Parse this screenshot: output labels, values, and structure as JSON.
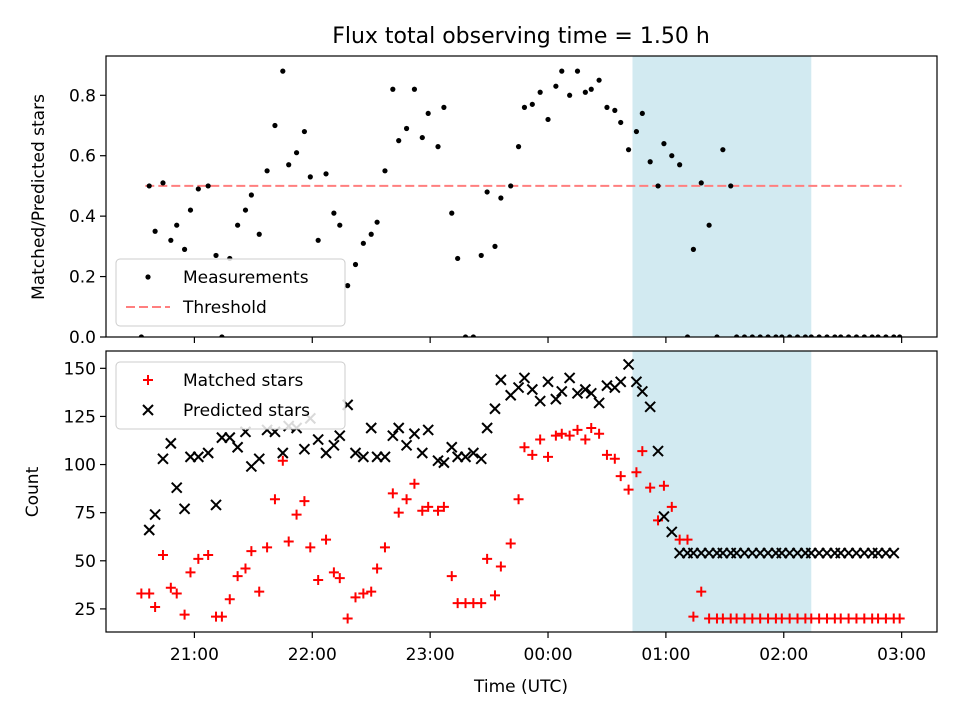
{
  "chart_data": {
    "type": "scatter",
    "title": "Flux total observing time = 1.50 h",
    "xlabel": "Time (UTC)",
    "x_tick_labels": [
      "21:00",
      "22:00",
      "23:00",
      "00:00",
      "01:00",
      "02:00",
      "03:00"
    ],
    "x_tick_values": [
      "21:00",
      "22:00",
      "23:00",
      "00:00",
      "01:00",
      "02:00",
      "03:00"
    ],
    "xlim": [
      "20:15",
      "03:18"
    ],
    "highlight_span": [
      "00:43",
      "02:14"
    ],
    "highlight_color": "#add8e6",
    "panels": [
      {
        "ylabel": "Matched/Predicted stars",
        "ylim": [
          0,
          0.93
        ],
        "y_tick_labels": [
          "0.0",
          "0.2",
          "0.4",
          "0.6",
          "0.8"
        ],
        "y_tick_values": [
          0,
          0.2,
          0.4,
          0.6,
          0.8
        ],
        "legend_position": "lower-left",
        "threshold": {
          "name": "Threshold",
          "value": 0.5,
          "x_range": [
            "20:35",
            "03:00"
          ],
          "color": "#ff7f7f"
        },
        "series": [
          {
            "name": "Measurements",
            "color": "#000000",
            "marker": "dot",
            "x": [
              "20:33",
              "20:37",
              "20:40",
              "20:44",
              "20:48",
              "20:51",
              "20:55",
              "20:58",
              "21:02",
              "21:07",
              "21:11",
              "21:14",
              "21:18",
              "21:22",
              "21:26",
              "21:29",
              "21:33",
              "21:37",
              "21:41",
              "21:45",
              "21:48",
              "21:52",
              "21:56",
              "21:59",
              "22:03",
              "22:07",
              "22:11",
              "22:14",
              "22:18",
              "22:22",
              "22:26",
              "22:30",
              "22:33",
              "22:37",
              "22:41",
              "22:44",
              "22:48",
              "22:52",
              "22:56",
              "22:59",
              "23:04",
              "23:07",
              "23:11",
              "23:14",
              "23:18",
              "23:22",
              "23:26",
              "23:29",
              "23:33",
              "23:36",
              "23:41",
              "23:45",
              "23:48",
              "23:52",
              "23:56",
              "24:00",
              "24:04",
              "24:07",
              "24:11",
              "24:15",
              "24:19",
              "24:22",
              "24:26",
              "24:30",
              "24:34",
              "24:37",
              "24:41",
              "24:45",
              "24:48",
              "24:52",
              "24:56",
              "24:59",
              "25:03",
              "25:07",
              "25:11",
              "25:14",
              "25:18",
              "25:22",
              "25:26",
              "25:29",
              "25:33",
              "25:36",
              "25:40",
              "25:44",
              "25:48",
              "25:52",
              "25:56",
              "25:59",
              "26:03",
              "26:07",
              "26:11",
              "26:14",
              "26:18",
              "26:22",
              "26:26",
              "26:29",
              "26:33",
              "26:37",
              "26:41",
              "26:45",
              "26:48",
              "26:52",
              "26:56",
              "26:59"
            ],
            "y": [
              0.0,
              0.5,
              0.35,
              0.51,
              0.32,
              0.37,
              0.29,
              0.42,
              0.49,
              0.5,
              0.27,
              0.0,
              0.26,
              0.37,
              0.42,
              0.47,
              0.34,
              0.55,
              0.7,
              0.88,
              0.57,
              0.61,
              0.68,
              0.53,
              0.32,
              0.54,
              0.41,
              0.37,
              0.17,
              0.24,
              0.31,
              0.34,
              0.38,
              0.55,
              0.82,
              0.65,
              0.69,
              0.82,
              0.66,
              0.74,
              0.63,
              0.76,
              0.41,
              0.26,
              0.0,
              0.0,
              0.27,
              0.48,
              0.3,
              0.46,
              0.5,
              0.63,
              0.76,
              0.77,
              0.81,
              0.72,
              0.83,
              0.88,
              0.8,
              0.88,
              0.81,
              0.82,
              0.85,
              0.76,
              0.75,
              0.71,
              0.62,
              0.68,
              0.74,
              0.58,
              0.5,
              0.64,
              0.6,
              0.57,
              0.0,
              0.29,
              0.51,
              0.37,
              0.0,
              0.62,
              0.5,
              0.0,
              0.0,
              0.0,
              0.0,
              0.0,
              0.0,
              0.0,
              0.0,
              0.0,
              0.0,
              0.0,
              0.0,
              0.0,
              0.0,
              0.0,
              0.0,
              0.0,
              0.0,
              0.0,
              0.0,
              0.0,
              0.0,
              0.0
            ]
          }
        ]
      },
      {
        "ylabel": "Count",
        "ylim": [
          13,
          159
        ],
        "y_tick_labels": [
          "25",
          "50",
          "75",
          "100",
          "125",
          "150"
        ],
        "y_tick_values": [
          25,
          50,
          75,
          100,
          125,
          150
        ],
        "legend_position": "upper-left",
        "series": [
          {
            "name": "Matched stars",
            "color": "#ff0000",
            "marker": "plus",
            "x": [
              "20:33",
              "20:37",
              "20:40",
              "20:44",
              "20:48",
              "20:51",
              "20:55",
              "20:58",
              "21:02",
              "21:07",
              "21:11",
              "21:14",
              "21:18",
              "21:22",
              "21:26",
              "21:29",
              "21:33",
              "21:37",
              "21:41",
              "21:45",
              "21:48",
              "21:52",
              "21:56",
              "21:59",
              "22:03",
              "22:07",
              "22:11",
              "22:14",
              "22:18",
              "22:22",
              "22:26",
              "22:30",
              "22:33",
              "22:37",
              "22:41",
              "22:44",
              "22:48",
              "22:52",
              "22:56",
              "22:59",
              "23:04",
              "23:07",
              "23:11",
              "23:14",
              "23:18",
              "23:22",
              "23:26",
              "23:29",
              "23:33",
              "23:36",
              "23:41",
              "23:45",
              "23:48",
              "23:52",
              "23:56",
              "24:00",
              "24:04",
              "24:07",
              "24:11",
              "24:15",
              "24:19",
              "24:22",
              "24:26",
              "24:30",
              "24:34",
              "24:37",
              "24:41",
              "24:45",
              "24:48",
              "24:52",
              "24:56",
              "24:59",
              "25:03",
              "25:07",
              "25:11",
              "25:14",
              "25:18",
              "25:22",
              "25:26",
              "25:29",
              "25:33",
              "25:36",
              "25:40",
              "25:44",
              "25:48",
              "25:52",
              "25:56",
              "25:59",
              "26:03",
              "26:07",
              "26:11",
              "26:14",
              "26:18",
              "26:22",
              "26:26",
              "26:29",
              "26:33",
              "26:37",
              "26:41",
              "26:45",
              "26:48",
              "26:52",
              "26:56",
              "26:59"
            ],
            "y": [
              33,
              33,
              26,
              53,
              36,
              33,
              22,
              44,
              51,
              53,
              21,
              21,
              30,
              42,
              46,
              55,
              34,
              57,
              82,
              102,
              60,
              74,
              81,
              57,
              40,
              61,
              44,
              41,
              20,
              31,
              33,
              34,
              46,
              57,
              85,
              75,
              82,
              90,
              76,
              78,
              76,
              78,
              42,
              28,
              28,
              28,
              28,
              51,
              32,
              47,
              59,
              82,
              109,
              105,
              113,
              104,
              115,
              116,
              115,
              118,
              113,
              119,
              116,
              105,
              103,
              94,
              87,
              96,
              107,
              88,
              71,
              89,
              78,
              61,
              61,
              21,
              34,
              20,
              20,
              20,
              20,
              20,
              20,
              20,
              20,
              20,
              20,
              20,
              20,
              20,
              20,
              20,
              20,
              20,
              20,
              20,
              20,
              20,
              20,
              20,
              20,
              20,
              20,
              20
            ]
          },
          {
            "name": "Predicted stars",
            "color": "#000000",
            "marker": "x",
            "x": [
              "20:37",
              "20:40",
              "20:44",
              "20:48",
              "20:51",
              "20:55",
              "20:58",
              "21:02",
              "21:07",
              "21:11",
              "21:14",
              "21:18",
              "21:22",
              "21:26",
              "21:29",
              "21:33",
              "21:37",
              "21:41",
              "21:45",
              "21:48",
              "21:52",
              "21:56",
              "21:59",
              "22:03",
              "22:07",
              "22:11",
              "22:14",
              "22:18",
              "22:22",
              "22:26",
              "22:30",
              "22:33",
              "22:37",
              "22:41",
              "22:44",
              "22:48",
              "22:52",
              "22:56",
              "22:59",
              "23:04",
              "23:07",
              "23:11",
              "23:14",
              "23:18",
              "23:22",
              "23:26",
              "23:29",
              "23:33",
              "23:36",
              "23:41",
              "23:45",
              "23:48",
              "23:52",
              "23:56",
              "24:00",
              "24:04",
              "24:07",
              "24:11",
              "24:15",
              "24:19",
              "24:22",
              "24:26",
              "24:30",
              "24:34",
              "24:37",
              "24:41",
              "24:45",
              "24:48",
              "24:52",
              "24:56",
              "24:59",
              "25:03",
              "25:07",
              "25:11",
              "25:14",
              "25:18",
              "25:22",
              "25:26",
              "25:29",
              "25:33",
              "25:36",
              "25:40",
              "25:44",
              "25:48",
              "25:52",
              "25:56",
              "25:59",
              "26:03",
              "26:07",
              "26:11",
              "26:14",
              "26:18",
              "26:22",
              "26:26",
              "26:29",
              "26:33",
              "26:37",
              "26:41",
              "26:45",
              "26:48",
              "26:52",
              "26:56"
            ],
            "y": [
              66,
              74,
              103,
              111,
              88,
              77,
              104,
              104,
              106,
              79,
              114,
              114,
              109,
              117,
              99,
              103,
              118,
              117,
              106,
              120,
              119,
              108,
              124,
              113,
              106,
              110,
              115,
              131,
              106,
              104,
              119,
              104,
              104,
              115,
              119,
              110,
              116,
              106,
              118,
              102,
              101,
              109,
              104,
              104,
              106,
              103,
              119,
              129,
              144,
              136,
              140,
              145,
              139,
              133,
              143,
              134,
              138,
              145,
              137,
              139,
              137,
              132,
              141,
              140,
              143,
              152,
              143,
              138,
              130,
              107,
              73,
              65,
              54,
              54,
              54,
              54,
              54,
              54,
              54,
              54,
              54,
              54,
              54,
              54,
              54,
              54,
              54,
              54,
              54,
              54,
              54,
              54,
              54,
              54,
              54,
              54,
              54,
              54,
              54,
              54,
              54,
              54
            ]
          }
        ]
      }
    ]
  }
}
